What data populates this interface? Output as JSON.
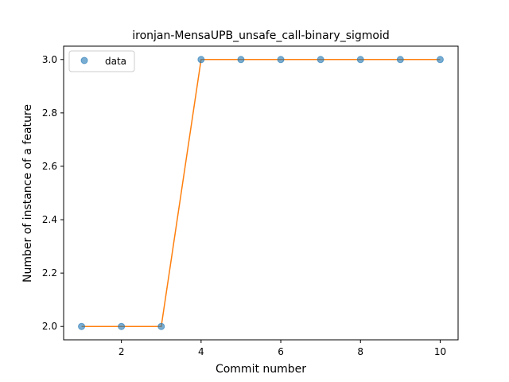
{
  "chart_data": {
    "type": "line",
    "title": "ironjan-MensaUPB_unsafe_call-binary_sigmoid",
    "xlabel": "Commit number",
    "ylabel": "Number of instance of a feature",
    "xlim": [
      0.55,
      10.45
    ],
    "ylim": [
      1.95,
      3.05
    ],
    "xticks": [
      2,
      4,
      6,
      8,
      10
    ],
    "yticks": [
      2.0,
      2.2,
      2.4,
      2.6,
      2.8,
      3.0
    ],
    "x": [
      1,
      2,
      3,
      4,
      5,
      6,
      7,
      8,
      9,
      10
    ],
    "series": [
      {
        "name": "data",
        "style": "scatter",
        "color": "#1f77b4",
        "values": [
          2,
          2,
          2,
          3,
          3,
          3,
          3,
          3,
          3,
          3
        ]
      },
      {
        "style": "line",
        "color": "#ff7f0e",
        "values": [
          2,
          2,
          2,
          3,
          3,
          3,
          3,
          3,
          3,
          3
        ]
      }
    ],
    "grid": false,
    "legend_position": "top-left"
  }
}
